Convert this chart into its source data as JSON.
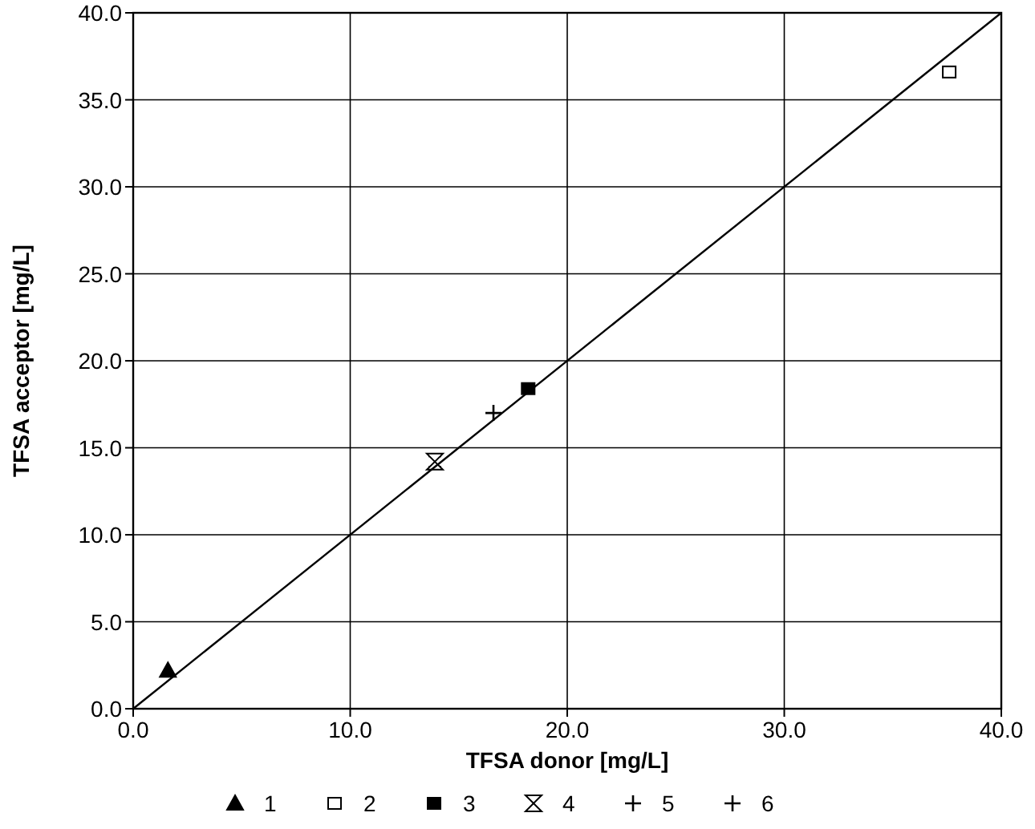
{
  "chart_data": {
    "type": "scatter",
    "xlabel": "TFSA donor [mg/L]",
    "ylabel": "TFSA acceptor [mg/L]",
    "xlim": [
      0,
      40
    ],
    "ylim": [
      0,
      40
    ],
    "xticks": [
      {
        "value": 0,
        "label": "0.0"
      },
      {
        "value": 10,
        "label": "10.0"
      },
      {
        "value": 20,
        "label": "20.0"
      },
      {
        "value": 30,
        "label": "30.0"
      },
      {
        "value": 40,
        "label": "40.0"
      }
    ],
    "yticks": [
      {
        "value": 0,
        "label": "0.0"
      },
      {
        "value": 5,
        "label": "5.0"
      },
      {
        "value": 10,
        "label": "10.0"
      },
      {
        "value": 15,
        "label": "15.0"
      },
      {
        "value": 20,
        "label": "20.0"
      },
      {
        "value": 25,
        "label": "25.0"
      },
      {
        "value": 30,
        "label": "30.0"
      },
      {
        "value": 35,
        "label": "35.0"
      },
      {
        "value": 40,
        "label": "40.0"
      }
    ],
    "grid": true,
    "legend": "bottom",
    "series": [
      {
        "name": "1",
        "color": "#000000",
        "marker": "triangle",
        "x": [
          1.6
        ],
        "values": [
          2.2
        ]
      },
      {
        "name": "2",
        "color": "#ffffff",
        "marker": "square",
        "x": [
          37.6
        ],
        "values": [
          36.6
        ]
      },
      {
        "name": "3",
        "color": "#000000",
        "marker": "square",
        "x": [
          18.2
        ],
        "values": [
          18.4
        ]
      },
      {
        "name": "4",
        "color": "#000000",
        "x": [
          13.9
        ],
        "values": [
          14.2
        ],
        "errors": [
          0.3
        ]
      },
      {
        "name": "5",
        "color": "#000000",
        "marker": "cross",
        "x": [
          16.6
        ],
        "values": [
          17.0
        ]
      },
      {
        "name": "6",
        "color": "#000000",
        "marker": "cross"
      },
      {
        "type": "line",
        "color": "#000000",
        "x": [
          0,
          40
        ],
        "values": [
          0,
          40
        ]
      }
    ]
  }
}
